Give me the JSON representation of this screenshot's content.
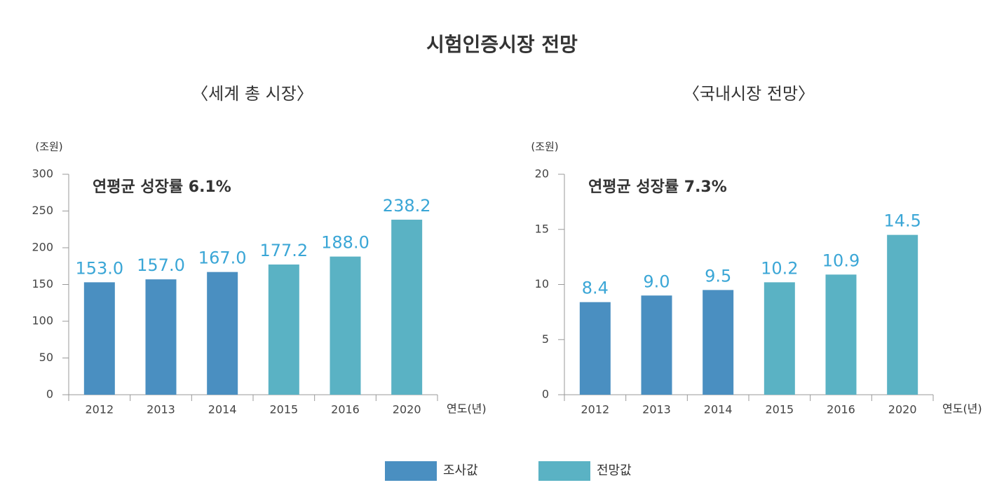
{
  "title": "시험인증시장 전망",
  "chart_data": [
    {
      "type": "bar",
      "title": "〈세계 총 시장〉",
      "y_label": "(조원)",
      "x_label": "연도(년)",
      "annotation": "연평균 성장률 6.1%",
      "categories": [
        "2012",
        "2013",
        "2014",
        "2015",
        "2016",
        "2020"
      ],
      "series": [
        {
          "name": "조사값",
          "color": "#4a8fc1",
          "values": [
            153.0,
            157.0,
            167.0,
            null,
            null,
            null
          ],
          "value_labels": [
            "153.0",
            "157.0",
            "167.0",
            null,
            null,
            null
          ]
        },
        {
          "name": "전망값",
          "color": "#5ab2c4",
          "values": [
            null,
            null,
            null,
            177.2,
            188.0,
            238.2
          ],
          "value_labels": [
            null,
            null,
            null,
            "177.2",
            "188.0",
            "238.2"
          ]
        }
      ],
      "ylim": [
        0,
        300
      ],
      "yticks": [
        0,
        50,
        100,
        150,
        200,
        250,
        300
      ],
      "grid": false
    },
    {
      "type": "bar",
      "title": "〈국내시장 전망〉",
      "y_label": "(조원)",
      "x_label": "연도(년)",
      "annotation": "연평균 성장률 7.3%",
      "categories": [
        "2012",
        "2013",
        "2014",
        "2015",
        "2016",
        "2020"
      ],
      "series": [
        {
          "name": "조사값",
          "color": "#4a8fc1",
          "values": [
            8.4,
            9.0,
            9.5,
            null,
            null,
            null
          ],
          "value_labels": [
            "8.4",
            "9.0",
            "9.5",
            null,
            null,
            null
          ]
        },
        {
          "name": "전망값",
          "color": "#5ab2c4",
          "values": [
            null,
            null,
            null,
            10.2,
            10.9,
            14.5
          ],
          "value_labels": [
            null,
            null,
            null,
            "10.2",
            "10.9",
            "14.5"
          ]
        }
      ],
      "ylim": [
        0,
        20
      ],
      "yticks": [
        0,
        5,
        10,
        15,
        20
      ],
      "grid": false
    }
  ]
}
